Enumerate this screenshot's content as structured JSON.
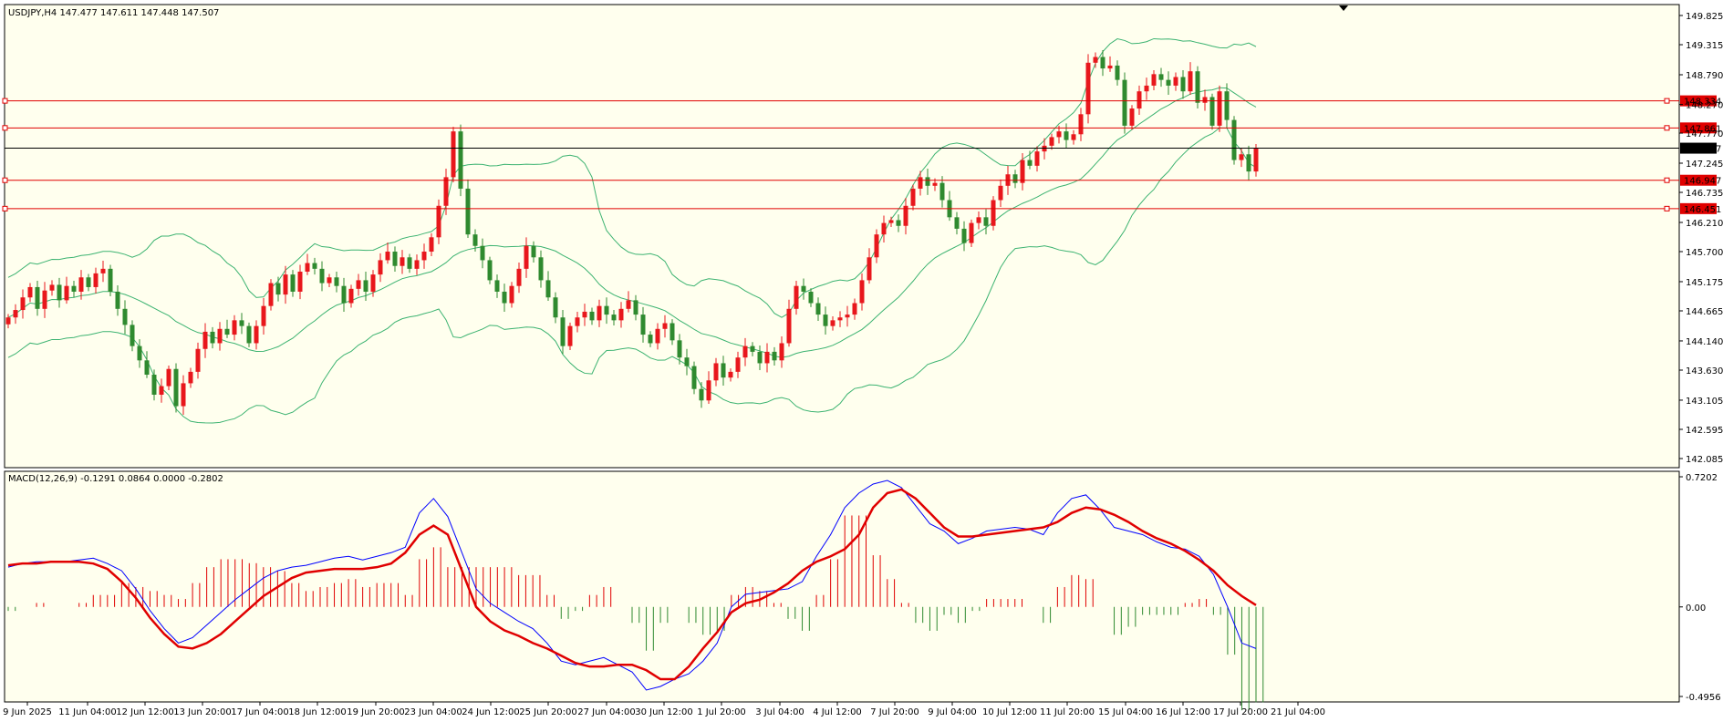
{
  "colors": {
    "background": "#ffffee",
    "bull": "#e8171c",
    "bear": "#2f8a2f",
    "band": "#3cb371",
    "level": "#e00000",
    "macd_line": "#0000ff",
    "signal_line": "#e00000"
  },
  "chart_data": [
    {
      "type": "candlestick",
      "title": "USDJPY,H4  147.477 147.611 147.448 147.507",
      "symbol": "USDJPY",
      "timeframe": "H4",
      "ohlc_label": "147.477 147.611 147.448 147.507",
      "ylim": [
        142.085,
        149.825
      ],
      "y_tick_labels": [
        "149.825",
        "149.315",
        "148.790",
        "148.270",
        "147.770",
        "147.245",
        "146.735",
        "146.210",
        "145.700",
        "145.175",
        "144.665",
        "144.140",
        "143.630",
        "143.105",
        "142.595",
        "142.085"
      ],
      "x_tick_labels": [
        "9 Jun 2025",
        "11 Jun 04:00",
        "12 Jun 12:00",
        "13 Jun 20:00",
        "17 Jun 04:00",
        "18 Jun 12:00",
        "19 Jun 20:00",
        "23 Jun 04:00",
        "24 Jun 12:00",
        "25 Jun 20:00",
        "27 Jun 04:00",
        "30 Jun 12:00",
        "1 Jul 20:00",
        "3 Jul 04:00",
        "4 Jul 12:00",
        "7 Jul 20:00",
        "9 Jul 04:00",
        "10 Jul 12:00",
        "11 Jul 20:00",
        "15 Jul 04:00",
        "16 Jul 12:00",
        "17 Jul 20:00",
        "21 Jul 04:00"
      ],
      "current_price": "147.507",
      "horizontal_levels": [
        "148.334",
        "147.861",
        "146.947",
        "146.451"
      ],
      "closes": [
        144.55,
        144.68,
        144.9,
        145.08,
        144.7,
        145.02,
        145.12,
        144.85,
        145.1,
        145.0,
        145.25,
        145.08,
        145.32,
        145.4,
        145.0,
        144.7,
        144.42,
        144.05,
        143.8,
        143.55,
        143.2,
        143.35,
        143.65,
        143.0,
        143.4,
        143.6,
        144.0,
        144.3,
        144.1,
        144.35,
        144.25,
        144.5,
        144.4,
        144.1,
        144.4,
        144.75,
        145.15,
        144.95,
        145.3,
        145.0,
        145.35,
        145.5,
        145.4,
        145.15,
        145.25,
        145.1,
        144.8,
        145.05,
        145.2,
        145.0,
        145.3,
        145.55,
        145.7,
        145.45,
        145.6,
        145.4,
        145.55,
        145.7,
        145.95,
        146.5,
        147.0,
        147.8,
        146.8,
        146.0,
        145.8,
        145.55,
        145.2,
        145.0,
        144.8,
        145.1,
        145.4,
        145.8,
        145.6,
        145.2,
        144.9,
        144.55,
        144.05,
        144.4,
        144.55,
        144.65,
        144.5,
        144.75,
        144.6,
        144.5,
        144.7,
        144.85,
        144.6,
        144.25,
        144.1,
        144.35,
        144.45,
        144.15,
        143.85,
        143.7,
        143.3,
        143.1,
        143.45,
        143.75,
        143.5,
        143.6,
        143.85,
        144.05,
        143.95,
        143.75,
        143.95,
        143.8,
        144.1,
        144.7,
        145.1,
        145.0,
        144.8,
        144.6,
        144.4,
        144.5,
        144.55,
        144.6,
        144.8,
        145.2,
        145.6,
        146.0,
        146.2,
        146.25,
        146.15,
        146.5,
        146.8,
        147.0,
        146.85,
        146.9,
        146.6,
        146.3,
        146.1,
        145.85,
        146.2,
        146.3,
        146.15,
        146.6,
        146.85,
        147.05,
        146.9,
        147.3,
        147.2,
        147.45,
        147.55,
        147.7,
        147.8,
        147.65,
        147.75,
        148.1,
        149.0,
        149.1,
        148.9,
        148.95,
        148.7,
        147.9,
        148.2,
        148.5,
        148.6,
        148.8,
        148.7,
        148.6,
        148.75,
        148.5,
        148.85,
        148.3,
        148.4,
        147.9,
        148.5,
        148.0,
        147.3,
        147.4,
        147.1,
        147.5
      ]
    },
    {
      "type": "line",
      "title": "MACD(12,26,9) -0.1291 0.0864 0.0000 -0.2802",
      "indicator": "MACD(12,26,9)",
      "values_label": "-0.1291 0.0864 0.0000 -0.2802",
      "ylim": [
        -0.4956,
        0.7202
      ],
      "y_tick_labels": [
        "0.7202",
        "0.00",
        "-0.4956"
      ],
      "series": [
        {
          "name": "MACD",
          "values": [
            0.22,
            0.24,
            0.25,
            0.25,
            0.25,
            0.26,
            0.27,
            0.24,
            0.2,
            0.1,
            -0.02,
            -0.12,
            -0.2,
            -0.17,
            -0.1,
            -0.03,
            0.04,
            0.1,
            0.16,
            0.2,
            0.22,
            0.23,
            0.25,
            0.27,
            0.28,
            0.26,
            0.28,
            0.3,
            0.33,
            0.52,
            0.6,
            0.5,
            0.3,
            0.1,
            0.02,
            -0.03,
            -0.08,
            -0.12,
            -0.2,
            -0.3,
            -0.32,
            -0.3,
            -0.28,
            -0.32,
            -0.36,
            -0.46,
            -0.44,
            -0.4,
            -0.37,
            -0.3,
            -0.2,
            0.0,
            0.07,
            0.08,
            0.09,
            0.1,
            0.14,
            0.28,
            0.4,
            0.55,
            0.63,
            0.68,
            0.7,
            0.66,
            0.56,
            0.46,
            0.42,
            0.35,
            0.38,
            0.42,
            0.43,
            0.44,
            0.43,
            0.4,
            0.52,
            0.6,
            0.62,
            0.54,
            0.44,
            0.42,
            0.4,
            0.36,
            0.33,
            0.32,
            0.28,
            0.18,
            0.0,
            -0.2,
            -0.23
          ]
        },
        {
          "name": "Signal",
          "values": [
            0.23,
            0.24,
            0.24,
            0.25,
            0.25,
            0.25,
            0.24,
            0.21,
            0.14,
            0.05,
            -0.06,
            -0.15,
            -0.22,
            -0.23,
            -0.2,
            -0.15,
            -0.08,
            -0.01,
            0.06,
            0.11,
            0.16,
            0.19,
            0.2,
            0.21,
            0.21,
            0.21,
            0.22,
            0.24,
            0.3,
            0.4,
            0.45,
            0.4,
            0.2,
            0.0,
            -0.08,
            -0.13,
            -0.16,
            -0.2,
            -0.23,
            -0.27,
            -0.31,
            -0.33,
            -0.33,
            -0.32,
            -0.32,
            -0.35,
            -0.4,
            -0.4,
            -0.33,
            -0.23,
            -0.14,
            -0.03,
            0.02,
            0.04,
            0.08,
            0.13,
            0.2,
            0.25,
            0.28,
            0.32,
            0.4,
            0.55,
            0.63,
            0.65,
            0.6,
            0.52,
            0.44,
            0.39,
            0.39,
            0.4,
            0.41,
            0.42,
            0.43,
            0.44,
            0.47,
            0.52,
            0.55,
            0.54,
            0.51,
            0.47,
            0.42,
            0.38,
            0.35,
            0.31,
            0.26,
            0.2,
            0.12,
            0.06,
            0.01
          ]
        }
      ]
    }
  ]
}
